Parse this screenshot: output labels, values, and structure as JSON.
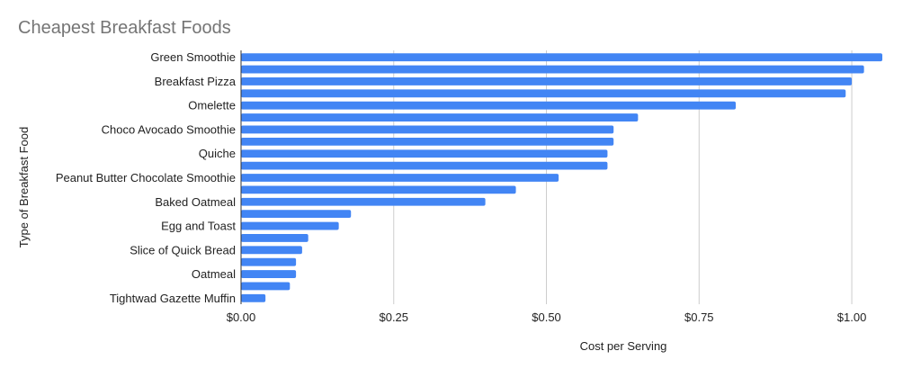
{
  "chart_data": {
    "type": "bar",
    "orientation": "horizontal",
    "title": "Cheapest Breakfast Foods",
    "xlabel": "Cost per Serving",
    "ylabel": "Type of Breakfast Food",
    "xlim": [
      0,
      1.05
    ],
    "x_ticks": [
      0,
      0.25,
      0.5,
      0.75,
      1.0
    ],
    "x_tick_labels": [
      "$0.00",
      "$0.25",
      "$0.50",
      "$0.75",
      "$1.00"
    ],
    "grid": true,
    "legend": "none",
    "bar_color": "#4285f4",
    "categories": [
      "Green Smoothie",
      "",
      "Breakfast Pizza",
      "",
      "Omelette",
      "",
      "Choco Avocado Smoothie",
      "",
      "Quiche",
      "",
      "Peanut Butter Chocolate Smoothie",
      "",
      "Baked Oatmeal",
      "",
      "Egg and Toast",
      "",
      "Slice of Quick Bread",
      "",
      "Oatmeal",
      "",
      "Tightwad Gazette Muffin"
    ],
    "values": [
      1.05,
      1.02,
      1.0,
      0.99,
      0.81,
      0.65,
      0.61,
      0.61,
      0.6,
      0.6,
      0.52,
      0.45,
      0.4,
      0.18,
      0.16,
      0.11,
      0.1,
      0.09,
      0.09,
      0.08,
      0.04
    ]
  }
}
